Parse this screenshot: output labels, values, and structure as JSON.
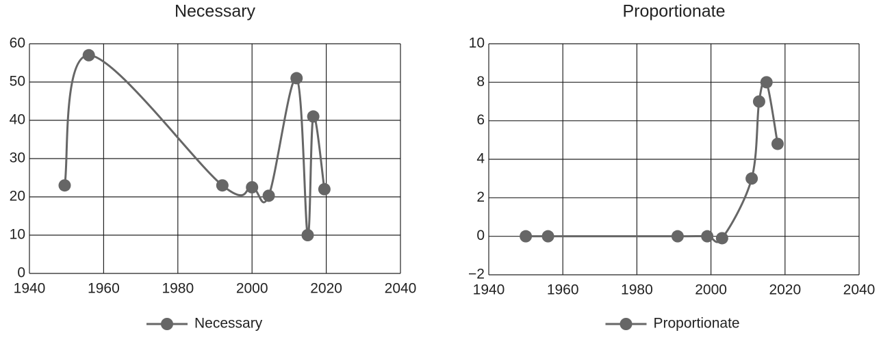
{
  "chart_data": [
    {
      "type": "line",
      "title": "Necessary",
      "x": [
        1949.5,
        1956,
        1992,
        2000,
        2004.5,
        2012,
        2015,
        2016.5,
        2019.5
      ],
      "series": [
        {
          "name": "Necessary",
          "color": "#666666",
          "values": [
            23,
            57,
            23,
            22.5,
            20.3,
            51,
            10,
            41,
            22
          ]
        }
      ],
      "xlim": [
        1940,
        2040
      ],
      "ylim": [
        0,
        60
      ],
      "xticks": [
        1940,
        1960,
        1980,
        2000,
        2020,
        2040
      ],
      "yticks": [
        0,
        10,
        20,
        30,
        40,
        50,
        60
      ],
      "grid": true,
      "legend": "bottom"
    },
    {
      "type": "line",
      "title": "Proportionate",
      "x": [
        1950,
        1956,
        1991,
        1999,
        2003,
        2011,
        2013,
        2015,
        2018
      ],
      "series": [
        {
          "name": "Proportionate",
          "color": "#666666",
          "values": [
            0,
            0,
            0,
            0,
            -0.1,
            3,
            7,
            8,
            4.8
          ]
        }
      ],
      "xlim": [
        1940,
        2040
      ],
      "ylim": [
        -2,
        10
      ],
      "xticks": [
        1940,
        1960,
        1980,
        2000,
        2020,
        2040
      ],
      "yticks": [
        {
          "value": -2,
          "label": "−2"
        },
        0,
        2,
        4,
        6,
        8,
        10
      ],
      "grid": true,
      "legend": "bottom"
    }
  ]
}
